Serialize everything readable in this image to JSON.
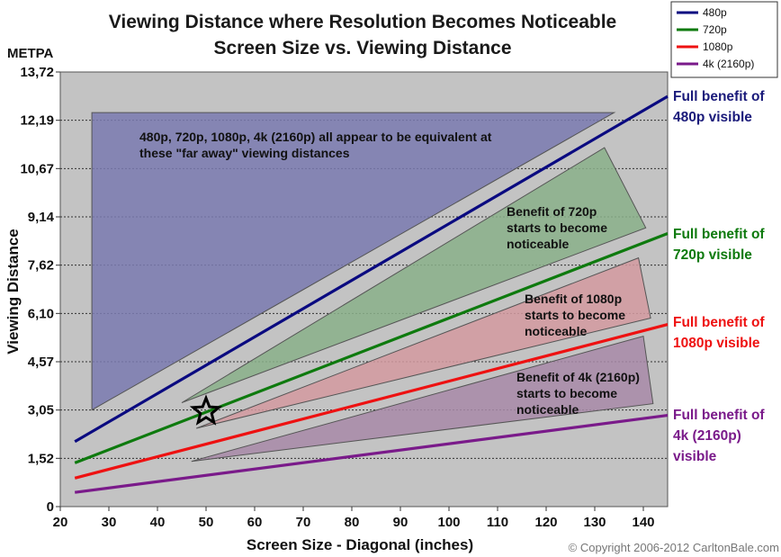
{
  "chart_data": {
    "type": "line",
    "title": "Viewing Distance where Resolution Becomes Noticeable",
    "subtitle": "Screen Size vs. Viewing Distance",
    "xlabel": "Screen Size - Diagonal (inches)",
    "ylabel": "Viewing Distance",
    "yunit": "METPA",
    "xlim": [
      20,
      145
    ],
    "ylim": [
      0,
      13.72
    ],
    "xticks": [
      "20",
      "30",
      "40",
      "50",
      "60",
      "70",
      "80",
      "90",
      "100",
      "110",
      "120",
      "130",
      "140"
    ],
    "yticks": [
      "0",
      "1,52",
      "3,05",
      "4,57",
      "6,10",
      "7,62",
      "9,14",
      "10,67",
      "12,19",
      "13,72"
    ],
    "grid": true,
    "legend_position": "top-right",
    "series": [
      {
        "name": "480p",
        "color": "#0a0a80",
        "x": [
          23,
          145
        ],
        "y": [
          2.05,
          12.95
        ]
      },
      {
        "name": "720p",
        "color": "#0e7a0e",
        "x": [
          23,
          145
        ],
        "y": [
          1.38,
          8.62
        ]
      },
      {
        "name": "1080p",
        "color": "#ee1111",
        "x": [
          23,
          145
        ],
        "y": [
          0.9,
          5.75
        ]
      },
      {
        "name": "4k (2160p)",
        "color": "#7a1a8a",
        "x": [
          23,
          145
        ],
        "y": [
          0.45,
          2.88
        ]
      }
    ],
    "regions": [
      {
        "name": "far-away-region",
        "fill": "#7a7ab0",
        "points": [
          [
            26.5,
            12.44
          ],
          [
            134,
            12.44
          ],
          [
            26.5,
            3.05
          ]
        ]
      },
      {
        "name": "720p-region",
        "fill": "#8ab08a",
        "points": [
          [
            132,
            11.33
          ],
          [
            140.5,
            8.8
          ],
          [
            45,
            3.28
          ]
        ]
      },
      {
        "name": "1080p-region",
        "fill": "#d39aa0",
        "points": [
          [
            139,
            7.85
          ],
          [
            141.5,
            5.95
          ],
          [
            48,
            2.47
          ]
        ]
      },
      {
        "name": "4k-region",
        "fill": "#a88aa8",
        "points": [
          [
            140,
            5.38
          ],
          [
            142,
            3.25
          ],
          [
            47,
            1.43
          ]
        ]
      }
    ],
    "annotations": [
      {
        "lines": [
          "480p, 720p, 1080p, 4k (2160p) all appear to be equivalent at",
          "these \"far away\" viewing distances"
        ]
      },
      {
        "lines": [
          "Benefit of 720p",
          "starts to become",
          "noticeable"
        ]
      },
      {
        "lines": [
          "Benefit of 1080p",
          "starts to become",
          "noticeable"
        ]
      },
      {
        "lines": [
          "Benefit of 4k (2160p)",
          "starts to become",
          "noticeable"
        ]
      }
    ],
    "marker": {
      "shape": "star",
      "x": 50,
      "y": 3.0
    },
    "side_labels": [
      {
        "lines": [
          "Full benefit of",
          "480p visible"
        ],
        "color": "#1a1a7a"
      },
      {
        "lines": [
          "Full benefit of",
          "720p visible"
        ],
        "color": "#0e7a0e"
      },
      {
        "lines": [
          "Full benefit of",
          "1080p visible"
        ],
        "color": "#ee1111"
      },
      {
        "lines": [
          "Full benefit of",
          "4k (2160p)",
          "visible"
        ],
        "color": "#7a1a8a"
      }
    ]
  },
  "copyright": "© Copyright 2006-2012 CarltonBale.com"
}
